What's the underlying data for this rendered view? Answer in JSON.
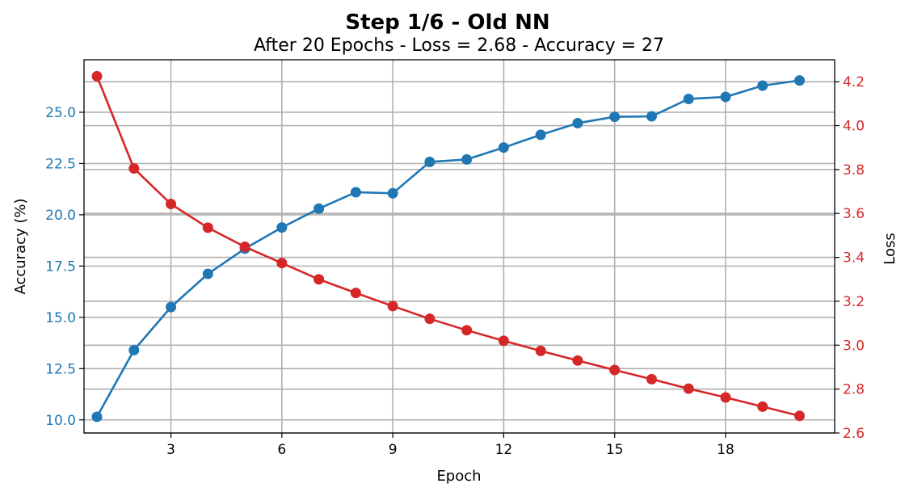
{
  "chart_data": {
    "type": "line",
    "title": "Step 1/6 - Old NN",
    "subtitle": "After 20 Epochs - Loss = 2.68 - Accuracy = 27",
    "xlabel": "Epoch",
    "ylabel_left": "Accuracy (%)",
    "ylabel_right": "Loss",
    "x": [
      1,
      2,
      3,
      4,
      5,
      6,
      7,
      8,
      9,
      10,
      11,
      12,
      13,
      14,
      15,
      16,
      17,
      18,
      19,
      20
    ],
    "x_ticks": [
      3,
      6,
      9,
      12,
      15,
      18
    ],
    "x_tick_labels": [
      "3",
      "6",
      "9",
      "12",
      "15",
      "18"
    ],
    "xlim": [
      0.65,
      20.95
    ],
    "ylim_left": [
      9.36,
      27.56
    ],
    "ylim_right": [
      2.6,
      4.3
    ],
    "left_ticks": [
      10.0,
      12.5,
      15.0,
      17.5,
      20.0,
      22.5,
      25.0
    ],
    "left_tick_labels": [
      "10.0",
      "12.5",
      "15.0",
      "17.5",
      "20.0",
      "22.5",
      "25.0"
    ],
    "right_ticks": [
      2.6,
      2.8,
      3.0,
      3.2,
      3.4,
      3.6,
      3.8,
      4.0,
      4.2
    ],
    "right_tick_labels": [
      "2.6",
      "2.8",
      "3.0",
      "3.2",
      "3.4",
      "3.6",
      "3.8",
      "4.0",
      "4.2"
    ],
    "grid": true,
    "series": [
      {
        "axis": "left",
        "color": "#1f77b4",
        "values": [
          10.15,
          13.4,
          15.5,
          17.12,
          18.35,
          19.38,
          20.3,
          21.1,
          21.05,
          22.58,
          22.7,
          23.28,
          23.9,
          24.47,
          24.78,
          24.8,
          25.65,
          25.75,
          26.3,
          26.55
        ]
      },
      {
        "axis": "right",
        "color": "#d62728",
        "values": [
          4.225,
          3.805,
          3.643,
          3.535,
          3.448,
          3.374,
          3.3,
          3.238,
          3.178,
          3.12,
          3.068,
          3.02,
          2.974,
          2.93,
          2.887,
          2.845,
          2.802,
          2.762,
          2.72,
          2.678
        ]
      }
    ]
  }
}
